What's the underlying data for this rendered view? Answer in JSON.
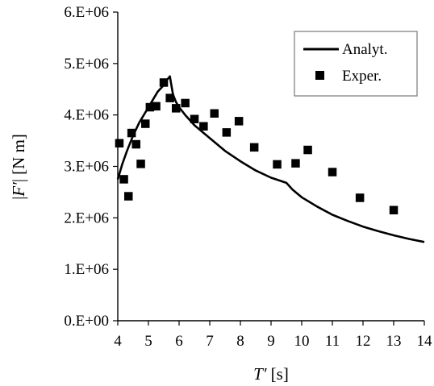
{
  "chart_data": {
    "type": "scatter",
    "xlabel": {
      "var": "T′",
      "unit": " [s]"
    },
    "ylabel": {
      "prefix": "|",
      "var": "F′",
      "suffix": "| [N m]"
    },
    "xlim": [
      4,
      14
    ],
    "ylim": [
      0,
      6000000
    ],
    "x_ticks": [
      4,
      5,
      6,
      7,
      8,
      9,
      10,
      11,
      12,
      13,
      14
    ],
    "x_tick_labels": [
      "4",
      "5",
      "6",
      "7",
      "8",
      "9",
      "10",
      "11",
      "12",
      "13",
      "14"
    ],
    "y_ticks": [
      0,
      1000000,
      2000000,
      3000000,
      4000000,
      5000000,
      6000000
    ],
    "y_tick_labels": [
      "0.E+00",
      "1.E+06",
      "2.E+06",
      "3.E+06",
      "4.E+06",
      "5.E+06",
      "6.E+06"
    ],
    "grid": false,
    "legend_position": "top-right",
    "series": [
      {
        "name": "Analyt.",
        "kind": "line",
        "color": "#000000",
        "x": [
          4.0,
          4.15,
          4.3,
          4.5,
          4.7,
          4.9,
          5.1,
          5.3,
          5.5,
          5.6,
          5.7,
          5.8,
          5.9,
          6.0,
          6.2,
          6.5,
          6.8,
          7.0,
          7.5,
          8.0,
          8.5,
          9.0,
          9.5,
          9.7,
          9.9,
          10.0,
          10.5,
          11.0,
          11.5,
          12.0,
          12.5,
          13.0,
          13.5,
          14.0
        ],
        "y": [
          2750000,
          3050000,
          3300000,
          3600000,
          3850000,
          4050000,
          4250000,
          4450000,
          4580000,
          4680000,
          4750000,
          4400000,
          4250000,
          4150000,
          4000000,
          3800000,
          3650000,
          3550000,
          3300000,
          3100000,
          2920000,
          2780000,
          2680000,
          2550000,
          2450000,
          2400000,
          2220000,
          2060000,
          1940000,
          1830000,
          1740000,
          1660000,
          1590000,
          1530000
        ]
      },
      {
        "name": "Exper.",
        "kind": "marker",
        "color": "#000000",
        "x": [
          4.05,
          4.2,
          4.35,
          4.45,
          4.6,
          4.75,
          4.9,
          5.05,
          5.25,
          5.5,
          5.7,
          5.9,
          6.2,
          6.5,
          6.8,
          7.15,
          7.55,
          7.95,
          8.45,
          9.2,
          9.8,
          10.2,
          11.0,
          11.9,
          13.0
        ],
        "y": [
          3450000,
          2750000,
          2420000,
          3650000,
          3430000,
          3050000,
          3830000,
          4150000,
          4170000,
          4630000,
          4330000,
          4130000,
          4230000,
          3920000,
          3780000,
          4030000,
          3660000,
          3880000,
          3370000,
          3040000,
          3060000,
          3320000,
          2890000,
          2390000,
          2150000
        ]
      }
    ]
  }
}
